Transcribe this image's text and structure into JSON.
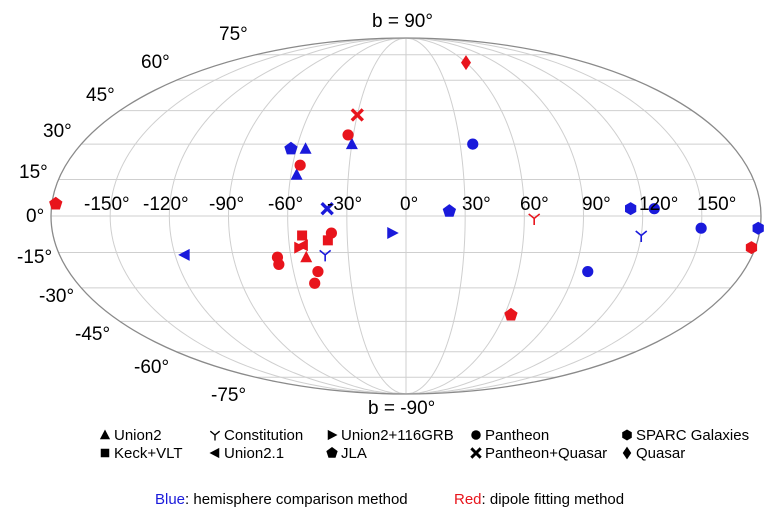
{
  "chart_data": {
    "type": "scatter",
    "projection": "mollweide",
    "title_top": "b = 90°",
    "title_bottom": "b = -90°",
    "lon_ticks": [
      "-150°",
      "-120°",
      "-90°",
      "-60°",
      "-30°",
      "0°",
      "30°",
      "60°",
      "90°",
      "120°",
      "150°"
    ],
    "lat_ticks": [
      "75°",
      "60°",
      "45°",
      "30°",
      "15°",
      "0°",
      "-15°",
      "-30°",
      "-45°",
      "-60°",
      "-75°"
    ],
    "colors": {
      "blue": "#1a1adb",
      "red": "#e8141c"
    },
    "series": [
      {
        "name": "Union2",
        "marker": "triangle-up",
        "points": [
          {
            "l": -55,
            "b": 28,
            "color": "blue"
          },
          {
            "l": -57,
            "b": 17,
            "color": "blue"
          },
          {
            "l": -30,
            "b": 30,
            "color": "blue"
          },
          {
            "l": -52,
            "b": -17,
            "color": "red"
          }
        ]
      },
      {
        "name": "Keck+VLT",
        "marker": "square",
        "points": [
          {
            "l": -40,
            "b": -10,
            "color": "red"
          },
          {
            "l": -53,
            "b": -8,
            "color": "red"
          }
        ]
      },
      {
        "name": "Constitution",
        "marker": "tri-y",
        "points": [
          {
            "l": -42,
            "b": -16,
            "color": "blue"
          },
          {
            "l": 120,
            "b": -8,
            "color": "blue"
          },
          {
            "l": 65,
            "b": -1,
            "color": "red"
          }
        ]
      },
      {
        "name": "Union2.1",
        "marker": "triangle-left",
        "points": [
          {
            "l": -115,
            "b": -16,
            "color": "blue"
          },
          {
            "l": -53,
            "b": -12,
            "color": "red"
          }
        ]
      },
      {
        "name": "Union2+116GRB",
        "marker": "triangle-right",
        "points": [
          {
            "l": -7,
            "b": -7,
            "color": "blue"
          },
          {
            "l": -55,
            "b": -13,
            "color": "red"
          }
        ]
      },
      {
        "name": "JLA",
        "marker": "pentagon",
        "points": [
          {
            "l": -63,
            "b": 28,
            "color": "blue"
          },
          {
            "l": 22,
            "b": 2,
            "color": "blue"
          },
          {
            "l": 64,
            "b": -42,
            "color": "red"
          },
          {
            "l": -178,
            "b": 5,
            "color": "red"
          }
        ]
      },
      {
        "name": "Pantheon",
        "marker": "circle",
        "points": [
          {
            "l": 37,
            "b": 30,
            "color": "blue"
          },
          {
            "l": 97,
            "b": -23,
            "color": "blue"
          },
          {
            "l": 126,
            "b": 3,
            "color": "blue"
          },
          {
            "l": 150,
            "b": -5,
            "color": "blue"
          },
          {
            "l": -33,
            "b": 34,
            "color": "red"
          },
          {
            "l": -56,
            "b": 21,
            "color": "red"
          },
          {
            "l": -38,
            "b": -7,
            "color": "red"
          },
          {
            "l": -67,
            "b": -17,
            "color": "red"
          },
          {
            "l": -67,
            "b": -20,
            "color": "red"
          },
          {
            "l": -47,
            "b": -23,
            "color": "red"
          },
          {
            "l": -50,
            "b": -28,
            "color": "red"
          }
        ]
      },
      {
        "name": "SPARC Galaxies",
        "marker": "hexagon",
        "points": [
          {
            "l": 114,
            "b": 3,
            "color": "blue"
          },
          {
            "l": 179,
            "b": -5,
            "color": "blue"
          },
          {
            "l": 178,
            "b": -13,
            "color": "red"
          }
        ]
      },
      {
        "name": "Pantheon+Quasar",
        "marker": "x-cross",
        "points": [
          {
            "l": -40,
            "b": 3,
            "color": "blue"
          },
          {
            "l": -30,
            "b": 43,
            "color": "red"
          }
        ]
      },
      {
        "name": "Quasar",
        "marker": "diamond",
        "points": [
          {
            "l": 60,
            "b": 70,
            "color": "red"
          }
        ]
      }
    ]
  },
  "caption": {
    "blue_word": "Blue",
    "blue_rest": ": hemisphere comparison method",
    "red_word": "Red",
    "red_rest": ": dipole fitting method"
  }
}
